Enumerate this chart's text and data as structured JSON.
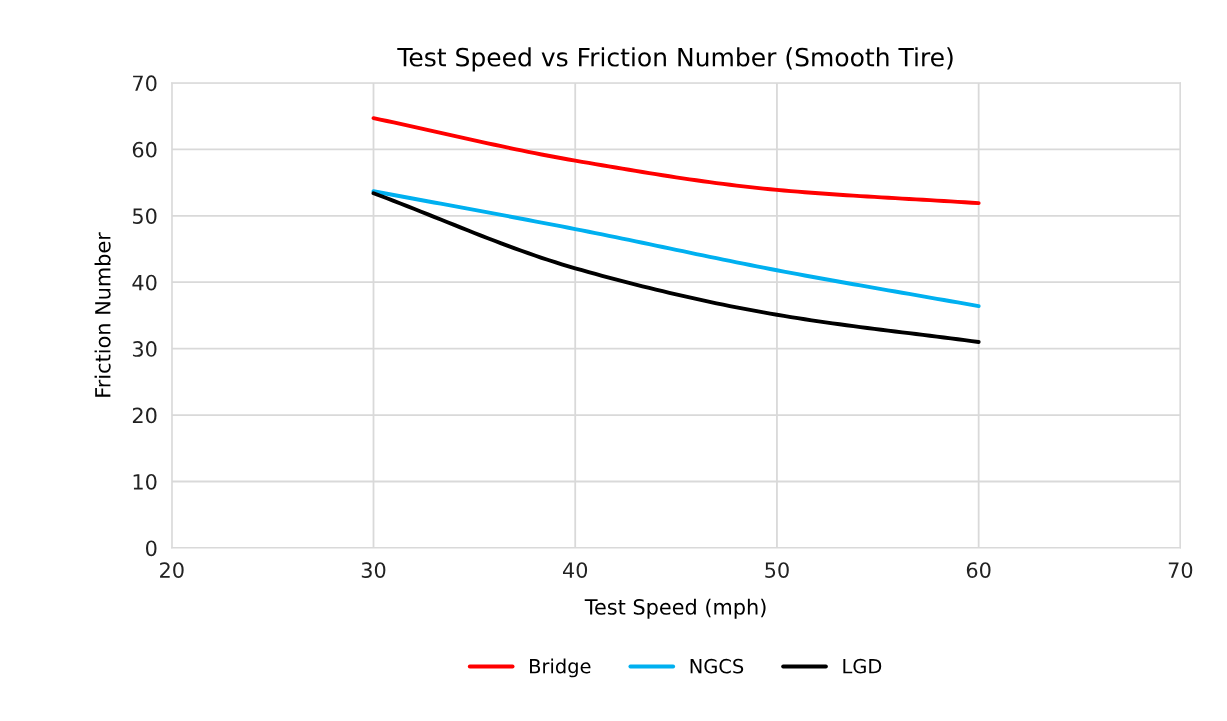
{
  "chart_data": {
    "type": "line",
    "title": "Test Speed vs Friction Number (Smooth Tire)",
    "xlabel": "Test Speed (mph)",
    "ylabel": "Friction Number",
    "x": [
      30,
      40,
      50,
      60
    ],
    "series": [
      {
        "name": "Bridge",
        "color": "#ff0000",
        "values": [
          64.7,
          58.3,
          53.9,
          51.9
        ]
      },
      {
        "name": "NGCS",
        "color": "#00b0f0",
        "values": [
          53.7,
          48.0,
          41.8,
          36.4
        ]
      },
      {
        "name": "LGD",
        "color": "#000000",
        "values": [
          53.4,
          42.1,
          35.1,
          31.0
        ]
      }
    ],
    "xlim": [
      20,
      70
    ],
    "xticks": [
      20,
      30,
      40,
      50,
      60,
      70
    ],
    "ylim": [
      0,
      70
    ],
    "yticks": [
      0,
      10,
      20,
      30,
      40,
      50,
      60,
      70
    ],
    "grid": true,
    "legend": "bottom",
    "marker": "none",
    "line_style": "solid"
  }
}
